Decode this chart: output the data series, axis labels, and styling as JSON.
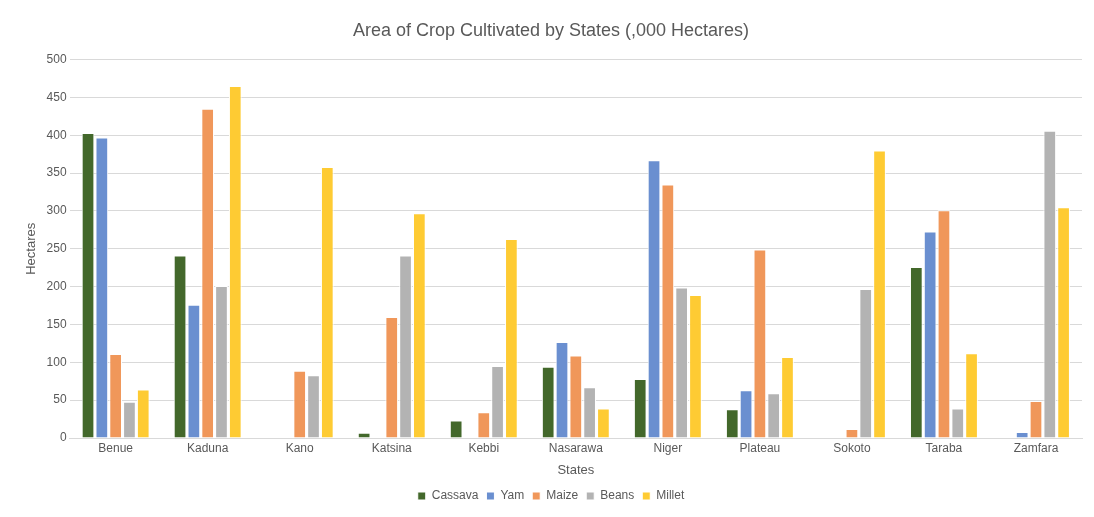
{
  "chart_data": {
    "type": "bar",
    "title": "Area of Crop Cultivated by States (,000 Hectares)",
    "xlabel": "States",
    "ylabel": "Hectares",
    "categories": [
      "Benue",
      "Kaduna",
      "Kano",
      "Katsina",
      "Kebbi",
      "Nasarawa",
      "Niger",
      "Plateau",
      "Sokoto",
      "Taraba",
      "Zamfara"
    ],
    "series": [
      {
        "name": "Cassava",
        "color": "#43682b",
        "values": [
          403,
          241,
          0,
          7,
          23,
          94,
          78,
          38,
          0,
          226,
          0
        ]
      },
      {
        "name": "Yam",
        "color": "#6a8fd0",
        "values": [
          397,
          176,
          0,
          0,
          0,
          127,
          367,
          63,
          0,
          273,
          8
        ]
      },
      {
        "name": "Maize",
        "color": "#f0975a",
        "values": [
          111,
          435,
          89,
          160,
          34,
          109,
          335,
          249,
          12,
          301,
          49
        ]
      },
      {
        "name": "Beans",
        "color": "#b3b3b3",
        "values": [
          48,
          201,
          83,
          241,
          95,
          67,
          199,
          59,
          197,
          39,
          406
        ]
      },
      {
        "name": "Millet",
        "color": "#fecb33",
        "values": [
          64,
          465,
          358,
          297,
          263,
          39,
          189,
          107,
          380,
          112,
          305
        ]
      }
    ],
    "ylim": [
      0,
      500
    ],
    "yticks": [
      0,
      50,
      100,
      150,
      200,
      250,
      300,
      350,
      400,
      450,
      500
    ],
    "grid": "y",
    "legend": "bottom"
  }
}
